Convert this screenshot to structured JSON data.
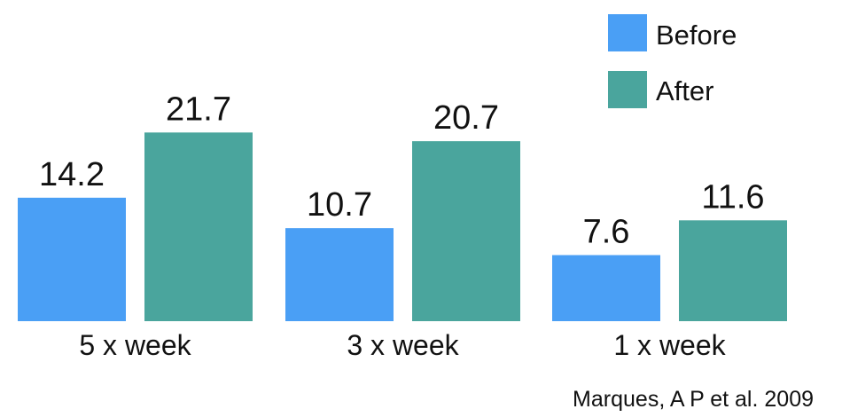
{
  "chart_data": {
    "type": "bar",
    "categories": [
      "5 x week",
      "3 x week",
      "1 x week"
    ],
    "series": [
      {
        "name": "Before",
        "values": [
          14.2,
          10.7,
          7.6
        ],
        "color": "#4a9ff5"
      },
      {
        "name": "After",
        "values": [
          21.7,
          20.7,
          11.6
        ],
        "color": "#4aa59d"
      }
    ],
    "value_labels": {
      "Before": [
        "14.2",
        "10.7",
        "7.6"
      ],
      "After": [
        "21.7",
        "20.7",
        "11.6"
      ]
    },
    "ylim": [
      0,
      25
    ],
    "grid": false,
    "legend_position": "top-right",
    "source": "Marques, A P et al. 2009"
  }
}
